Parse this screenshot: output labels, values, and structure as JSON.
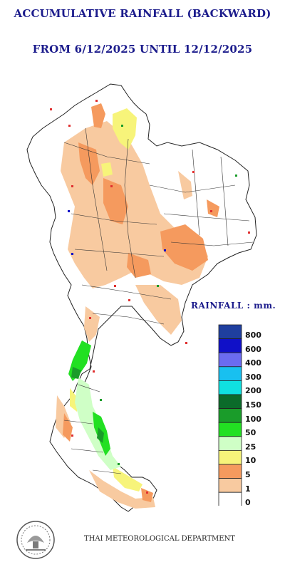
{
  "title_line1": "ACCUMULATIVE RAINFALL (BACKWARD)",
  "title_line2": "FROM 6/12/2025 UNTIL 12/12/2025",
  "legend": {
    "label": "RAINFALL : mm.",
    "colors": [
      "#1f3f9f",
      "#1010c8",
      "#6b6bf0",
      "#18c0f0",
      "#10e0e0",
      "#0b6b2a",
      "#1a9c2a",
      "#22e022",
      "#cfffc6",
      "#f7f47a",
      "#f59a5e",
      "#f8caa0",
      "#ffffff"
    ],
    "values": [
      "800",
      "600",
      "400",
      "300",
      "200",
      "150",
      "100",
      "50",
      "25",
      "10",
      "5",
      "1",
      "0"
    ]
  },
  "footer": "THAI METEOROLOGICAL DEPARTMENT",
  "icons": {
    "seal": "tmd-seal-icon"
  }
}
